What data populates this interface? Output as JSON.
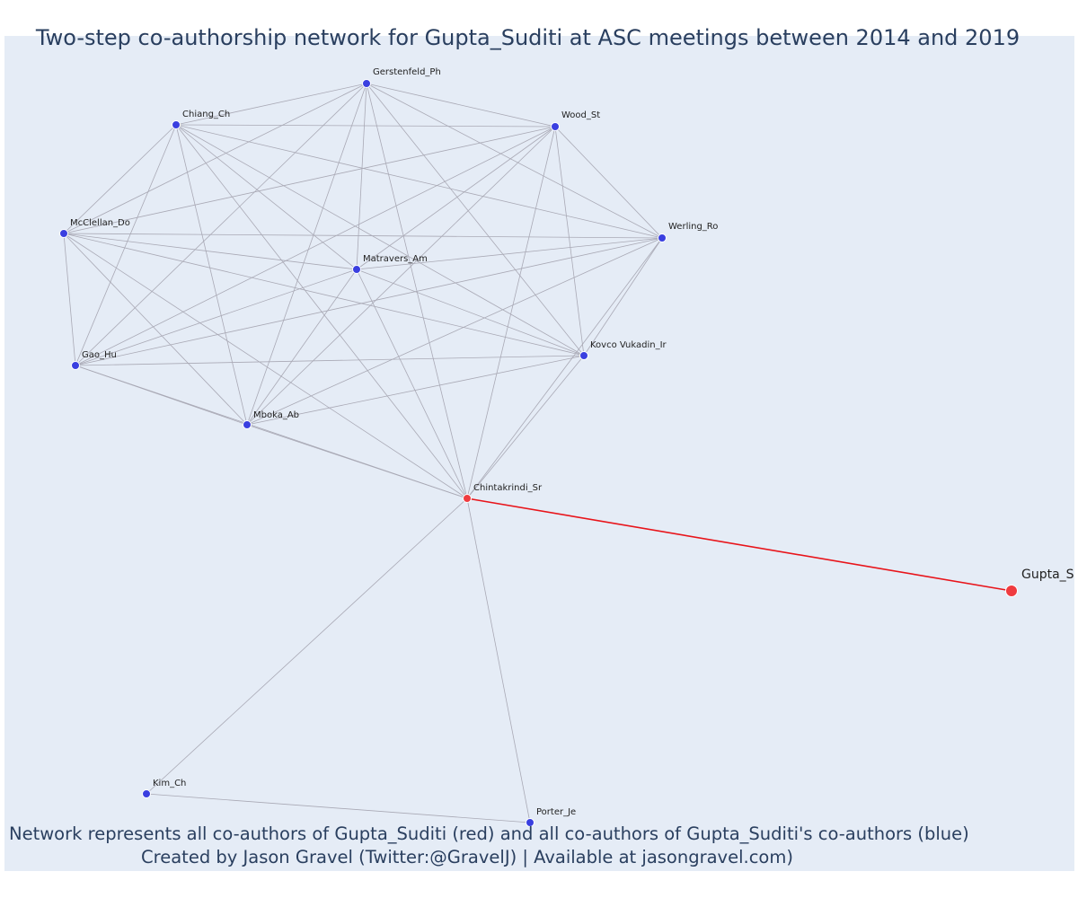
{
  "title": "Two-step co-authorship network for Gupta_Suditi at ASC meetings between 2014 and 2019",
  "caption_lines": [
    "Network represents all co-authors of Gupta_Suditi (red) and all co-authors of Gupta_Suditi's co-authors (blue)",
    "Created by Jason Gravel (Twitter:@GravelJ) | Available at jasongravel.com)"
  ],
  "colors": {
    "background": "#e5ecf6",
    "edge": "#a9a9b5",
    "focal_edge": "#e8141a",
    "red_node": "#ef3b3f",
    "blue_node": "#3a3fe0"
  },
  "chart_data": {
    "type": "network",
    "nodes": [
      {
        "id": "Gupta_S",
        "label": "Gupta_S",
        "group": "focal"
      },
      {
        "id": "Chintakrindi_Sr",
        "label": "Chintakrindi_Sr",
        "group": "red"
      },
      {
        "id": "Gerstenfeld_Ph",
        "label": "Gerstenfeld_Ph",
        "group": "blue"
      },
      {
        "id": "Chiang_Ch",
        "label": "Chiang_Ch",
        "group": "blue"
      },
      {
        "id": "Wood_St",
        "label": "Wood_St",
        "group": "blue"
      },
      {
        "id": "McClellan_Do",
        "label": "McClellan_Do",
        "group": "blue"
      },
      {
        "id": "Werling_Ro",
        "label": "Werling_Ro",
        "group": "blue"
      },
      {
        "id": "Matravers_Am",
        "label": "Matravers_Am",
        "group": "blue"
      },
      {
        "id": "Kovco Vukadin_Ir",
        "label": "Kovco Vukadin_Ir",
        "group": "blue"
      },
      {
        "id": "Gao_Hu",
        "label": "Gao_Hu",
        "group": "blue"
      },
      {
        "id": "Mboka_Ab",
        "label": "Mboka_Ab",
        "group": "blue"
      },
      {
        "id": "Kim_Ch",
        "label": "Kim_Ch",
        "group": "blue"
      },
      {
        "id": "Porter_Je",
        "label": "Porter_Je",
        "group": "blue"
      }
    ],
    "clique": [
      "Gerstenfeld_Ph",
      "Chiang_Ch",
      "Wood_St",
      "McClellan_Do",
      "Werling_Ro",
      "Matravers_Am",
      "Kovco Vukadin_Ir",
      "Gao_Hu",
      "Mboka_Ab",
      "Chintakrindi_Sr"
    ],
    "extra_edges": [
      [
        "Chintakrindi_Sr",
        "Kim_Ch"
      ],
      [
        "Chintakrindi_Sr",
        "Porter_Je"
      ],
      [
        "Kim_Ch",
        "Porter_Je"
      ]
    ],
    "focal_edges": [
      [
        "Chintakrindi_Sr",
        "Gupta_S"
      ]
    ]
  }
}
